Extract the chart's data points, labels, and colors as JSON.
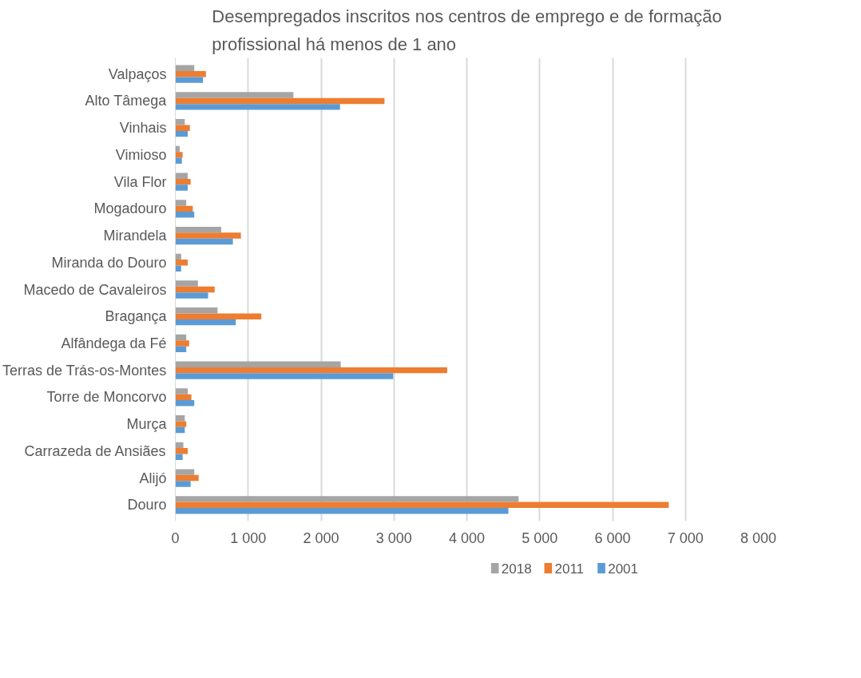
{
  "chart_data": {
    "type": "bar",
    "orientation": "horizontal",
    "title": "Desempregados inscritos nos centros de emprego e de formação profissional há menos de 1 ano",
    "categories": [
      "Valpaços",
      "Alto Tâmega",
      "Vinhais",
      "Vimioso",
      "Vila Flor",
      "Mogadouro",
      "Mirandela",
      "Miranda do Douro",
      "Macedo de Cavaleiros",
      "Bragança",
      "Alfândega da Fé",
      "Terras de Trás-os-Montes",
      "Torre de Moncorvo",
      "Murça",
      "Carrazeda de Ansiães",
      "Alijó",
      "Douro"
    ],
    "series": [
      {
        "name": "2018",
        "color": "#a5a5a5",
        "values": [
          260,
          1620,
          130,
          60,
          170,
          150,
          630,
          80,
          310,
          580,
          150,
          2270,
          170,
          130,
          110,
          260,
          4710
        ]
      },
      {
        "name": "2011",
        "color": "#ed7d31",
        "values": [
          420,
          2870,
          200,
          100,
          210,
          240,
          900,
          170,
          540,
          1180,
          190,
          3730,
          220,
          150,
          170,
          320,
          6770
        ]
      },
      {
        "name": "2001",
        "color": "#5b9bd5",
        "values": [
          380,
          2260,
          170,
          90,
          170,
          260,
          790,
          80,
          450,
          830,
          150,
          2990,
          260,
          130,
          100,
          210,
          4570
        ]
      }
    ],
    "xlim": [
      0,
      8000
    ],
    "xticks": [
      0,
      {
        "value": 1000,
        "label": "1 000"
      },
      {
        "value": 2000,
        "label": "2 000"
      },
      {
        "value": 3000,
        "label": "3 000"
      },
      {
        "value": 4000,
        "label": "4 000"
      },
      {
        "value": 5000,
        "label": "5 000"
      },
      {
        "value": 6000,
        "label": "6 000"
      },
      {
        "value": 7000,
        "label": "7 000"
      },
      {
        "value": 8000,
        "label": "8 000"
      }
    ],
    "grid": "x",
    "legend": "bottom"
  }
}
